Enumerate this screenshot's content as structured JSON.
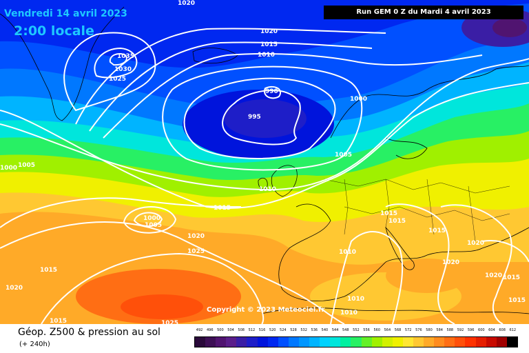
{
  "header": {
    "date": "Vendredi 14 avril 2023",
    "time": "2:00 locale",
    "run": "Run GEM 0 Z du Mardi 4 avril 2023"
  },
  "copyright": "Copyright © 2023 Meteociel.fr",
  "footer": {
    "title": "Géop. Z500 & pression au sol",
    "subtitle": "(+ 240h)"
  },
  "legend": {
    "values": [
      "492",
      "496",
      "500",
      "504",
      "508",
      "512",
      "516",
      "520",
      "524",
      "528",
      "532",
      "536",
      "540",
      "544",
      "548",
      "552",
      "556",
      "560",
      "564",
      "568",
      "572",
      "576",
      "580",
      "584",
      "588",
      "592",
      "596",
      "600",
      "604",
      "608",
      "612"
    ],
    "colors": [
      "#2a0a3a",
      "#3d0f55",
      "#501470",
      "#5a1e8a",
      "#3a1ea5",
      "#1e1ec8",
      "#0014dc",
      "#0028f0",
      "#0050ff",
      "#0078ff",
      "#0096ff",
      "#00b4ff",
      "#00d2ff",
      "#00e6dc",
      "#00f0a0",
      "#28f064",
      "#64f028",
      "#a0f000",
      "#d2f000",
      "#f0f000",
      "#ffe632",
      "#ffc832",
      "#ffaa28",
      "#ff8c1e",
      "#ff6e14",
      "#ff500a",
      "#ff3200",
      "#e61e00",
      "#c80a00",
      "#a00000",
      "#000000"
    ]
  },
  "isobars": {
    "l1020_top": "1020",
    "l1020_n": "1020",
    "l1015_n": "1015",
    "l1010_n": "1010",
    "l1035": "1035",
    "l1030": "1030",
    "l1025_w": "1025",
    "l990": "990",
    "l995": "995",
    "l1000_ne": "1000",
    "l1005_c": "1005",
    "l1000_w": "1000",
    "l1005_w": "1005",
    "l1010_c": "1010",
    "l1015_c": "1015",
    "l1000_low": "1000",
    "l1005_low": "1005",
    "l1020_s": "1020",
    "l1025_s": "1025",
    "l1015_sw": "1015",
    "l1020_sw": "1020",
    "l1015_b": "1015",
    "l1025_b": "1025",
    "l1015_e1": "1015",
    "l1015_e2": "1015",
    "l1015_e3": "1015",
    "l1020_e1": "1020",
    "l1020_e2": "1020",
    "l1010_e": "1010",
    "l1020_se": "1020",
    "l1015_se1": "1015",
    "l1015_se2": "1015",
    "l1010_s1": "1010",
    "l1010_s2": "1010"
  }
}
